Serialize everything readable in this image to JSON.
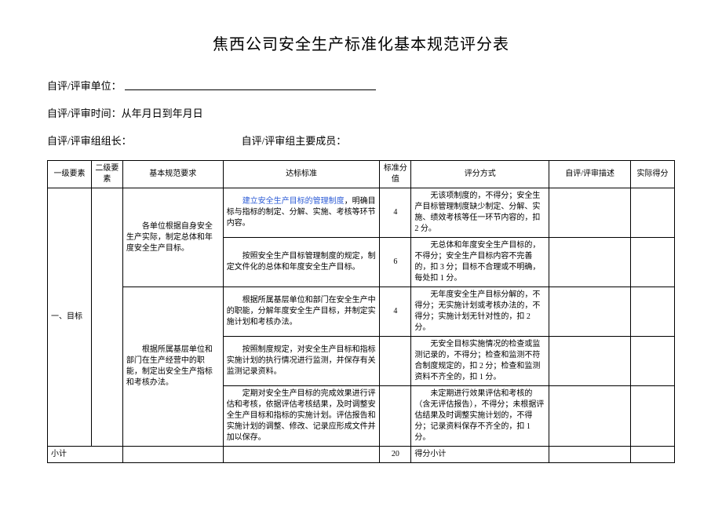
{
  "title": "焦西公司安全生产标准化基本规范评分表",
  "meta": {
    "unit_label": "自评/评审单位：",
    "time_label": "自评/评审时间：",
    "time_value": "从年月日到年月日",
    "leader_label": "自评/评审组组长：",
    "members_label": "自评/评审组主要成员："
  },
  "headers": {
    "level1": "一级要素",
    "level2": "二级要素",
    "requirement": "基本规范要求",
    "standard": "达标标准",
    "score": "标准分值",
    "method": "评分方式",
    "desc": "自评/评审描述",
    "actual": "实际得分"
  },
  "rows": {
    "level1_label": "一、目标",
    "r1": {
      "req": "各单位根据自身安全生产实际，制定总体和年度安全生产目标。",
      "std_pre": "",
      "std_blue": "建立安全生产目标的管理制度",
      "std_post": "，明确目标与指标的制定、分解、实施、考核等环节内容。",
      "score": "4",
      "method": "无该项制度的，不得分；安全生产目标管理制度缺少制定、分解、实施、绩效考核等任一环节内容的，扣 2 分。"
    },
    "r2": {
      "std": "按照安全生产目标管理制度的规定，制定文件化的总体和年度安全生产目标。",
      "score": "6",
      "method": "无总体和年度安全生产目标的，不得分；安全生产目标内容不完善的，扣 3 分；目标不合理或不明确，每处扣 1 分。"
    },
    "r3": {
      "req": "根据所属基层单位和部门在生产经营中的职能，制定出安全生产指标和考核办法。",
      "std": "根据所属基层单位和部门在安全生产中的职能，分解年度安全生产目标，并制定实施计划和考核办法。",
      "score": "4",
      "method": "无年度安全生产目标分解的，不得分；无实施计划或考核办法的，不得分；实施计划无针对性的，扣 2 分。"
    },
    "r4": {
      "std": "按照制度规定，对安全生产目标和指标实施计划的执行情况进行监测，并保存有关监测记录资料。",
      "score": "",
      "method": "无安全目标实施情况的检查或监测记录的，不得分；检查和监测不符合制度规定的，扣 2 分；检查和监测资料不齐全的，扣 1 分。"
    },
    "r5": {
      "std": "定期对安全生产目标的完成效果进行评估和考核，依据评估考核结果，及时调整安全生产目标和指标的实施计划。评估报告和实施计划的调整、修改、记录应形成文件并加以保存。",
      "score": "",
      "method": "未定期进行效果评估和考核的（含无评估报告），不得分；未根据评估结果及时调整实施计划的，不得分；记录资料保存不齐全的，扣 1 分。"
    },
    "subtotal": {
      "label": "小计",
      "score": "20",
      "method_label": "得分小计"
    }
  }
}
